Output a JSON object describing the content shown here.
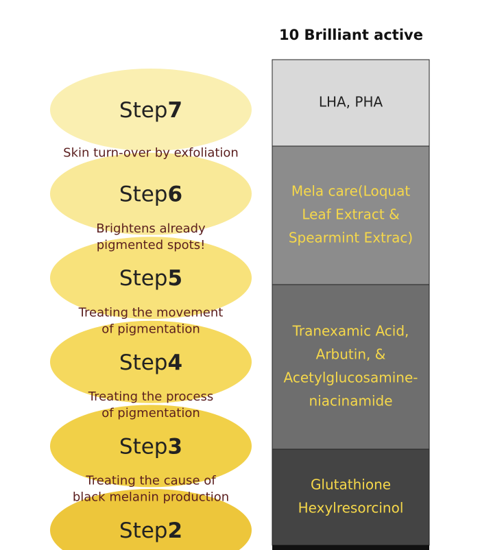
{
  "header": {
    "title": "10 Brilliant active"
  },
  "steps": [
    {
      "word": "Step",
      "number": "7",
      "description": [
        "Skin turn-over by exfoliation"
      ]
    },
    {
      "word": "Step",
      "number": "6",
      "description": [
        "Brightens already",
        "pigmented spots!"
      ]
    },
    {
      "word": "Step",
      "number": "5",
      "description": [
        "Treating the movement",
        "of pigmentation"
      ]
    },
    {
      "word": "Step",
      "number": "4",
      "description": [
        "Treating the process",
        "of pigmentation"
      ]
    },
    {
      "word": "Step",
      "number": "3",
      "description": [
        "Treating the cause of",
        "black melanin production"
      ]
    },
    {
      "word": "Step",
      "number": "2",
      "description": []
    }
  ],
  "actives": [
    {
      "lines": [
        "LHA, PHA"
      ]
    },
    {
      "lines": [
        "Mela care(Loquat",
        "Leaf Extract &",
        "Spearmint Extrac)"
      ]
    },
    {
      "lines": [
        "Tranexamic Acid,",
        "Arbutin, &",
        "Acetylglucosamine-",
        "niacinamide"
      ]
    },
    {
      "lines": [
        "Glutathione",
        "Hexylresorcinol"
      ]
    }
  ]
}
